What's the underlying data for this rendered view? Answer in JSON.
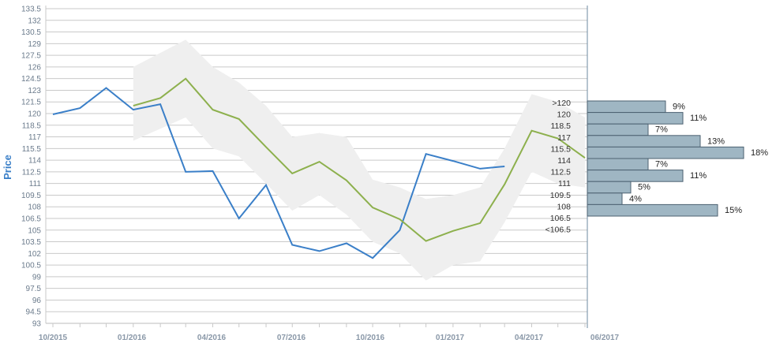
{
  "chart_data": {
    "type": "line",
    "ylabel": "Price",
    "ylim": [
      93,
      133.5
    ],
    "y_ticks": [
      "133.5",
      "132",
      "130.5",
      "129",
      "127.5",
      "126",
      "124.5",
      "123",
      "121.5",
      "120",
      "118.5",
      "117",
      "115.5",
      "114",
      "112.5",
      "111",
      "109.5",
      "108",
      "106.5",
      "105",
      "103.5",
      "102",
      "100.5",
      "99",
      "97.5",
      "96",
      "94.5",
      "93"
    ],
    "x_ticks": [
      "10/2015",
      "01/2016",
      "04/2016",
      "07/2016",
      "10/2016",
      "01/2017",
      "04/2017",
      "06/2017"
    ],
    "series": [
      {
        "color": "#3a7fc8",
        "points": [
          [
            "2015-10-01",
            119.9
          ],
          [
            "2015-11-01",
            120.7
          ],
          [
            "2015-12-01",
            123.3
          ],
          [
            "2016-01-01",
            120.5
          ],
          [
            "2016-02-01",
            121.2
          ],
          [
            "2016-03-01",
            112.5
          ],
          [
            "2016-04-01",
            112.6
          ],
          [
            "2016-05-01",
            106.5
          ],
          [
            "2016-06-01",
            110.8
          ],
          [
            "2016-07-01",
            103.1
          ],
          [
            "2016-08-01",
            102.3
          ],
          [
            "2016-09-01",
            103.3
          ],
          [
            "2016-10-01",
            101.4
          ],
          [
            "2016-11-01",
            105.0
          ],
          [
            "2016-12-01",
            114.8
          ],
          [
            "2017-01-01",
            113.9
          ],
          [
            "2017-02-01",
            112.9
          ],
          [
            "2017-03-01",
            113.2
          ]
        ]
      },
      {
        "color": "#8db04d",
        "points": [
          [
            "2016-01-01",
            121.0
          ],
          [
            "2016-02-01",
            122.0
          ],
          [
            "2016-03-01",
            124.5
          ],
          [
            "2016-04-01",
            120.5
          ],
          [
            "2016-05-01",
            119.3
          ],
          [
            "2016-06-01",
            115.7
          ],
          [
            "2016-07-01",
            112.3
          ],
          [
            "2016-08-01",
            113.8
          ],
          [
            "2016-09-01",
            111.4
          ],
          [
            "2016-10-01",
            107.9
          ],
          [
            "2016-11-01",
            106.4
          ],
          [
            "2016-12-01",
            103.6
          ],
          [
            "2017-01-01",
            104.9
          ],
          [
            "2017-02-01",
            105.9
          ],
          [
            "2017-03-01",
            110.9
          ],
          [
            "2017-04-01",
            117.8
          ],
          [
            "2017-05-01",
            116.8
          ],
          [
            "2017-06-01",
            114.3
          ]
        ]
      }
    ],
    "band": {
      "color": "#efefef",
      "points": [
        [
          "2016-01-01",
          116.5,
          126.0
        ],
        [
          "2016-03-01",
          119.5,
          129.5
        ],
        [
          "2016-04-01",
          115.5,
          126.0
        ],
        [
          "2016-05-01",
          114.5,
          124.0
        ],
        [
          "2016-06-01",
          111.0,
          121.0
        ],
        [
          "2016-07-01",
          107.5,
          117.0
        ],
        [
          "2016-08-01",
          109.5,
          117.5
        ],
        [
          "2016-09-01",
          107.0,
          117.0
        ],
        [
          "2016-10-01",
          103.5,
          111.5
        ],
        [
          "2016-11-01",
          102.0,
          110.5
        ],
        [
          "2016-12-01",
          98.5,
          109.0
        ],
        [
          "2017-01-01",
          100.5,
          109.5
        ],
        [
          "2017-02-01",
          101.0,
          110.5
        ],
        [
          "2017-03-01",
          106.0,
          115.5
        ],
        [
          "2017-04-01",
          112.5,
          122.5
        ],
        [
          "2017-05-01",
          111.0,
          121.5
        ],
        [
          "2017-06-01",
          110.5,
          119.5
        ]
      ]
    },
    "distribution": {
      "color": "#9fb6c3",
      "bins": [
        {
          "label": ">120",
          "pct": "9%",
          "value": 9
        },
        {
          "label": "120",
          "pct": "11%",
          "value": 11
        },
        {
          "label": "118.5",
          "pct": "7%",
          "value": 7
        },
        {
          "label": "117",
          "pct": "13%",
          "value": 13
        },
        {
          "label": "115.5",
          "pct": "18%",
          "value": 18
        },
        {
          "label": "114",
          "pct": "7%",
          "value": 7
        },
        {
          "label": "112.5",
          "pct": "11%",
          "value": 11
        },
        {
          "label": "111",
          "pct": "5%",
          "value": 5
        },
        {
          "label": "109.5",
          "pct": "4%",
          "value": 4
        },
        {
          "label": "108",
          "pct": "15%",
          "value": 15
        },
        {
          "label": "106.5",
          "pct": "",
          "value": 0
        },
        {
          "label": "<106.5",
          "pct": "",
          "value": 0
        }
      ]
    }
  }
}
